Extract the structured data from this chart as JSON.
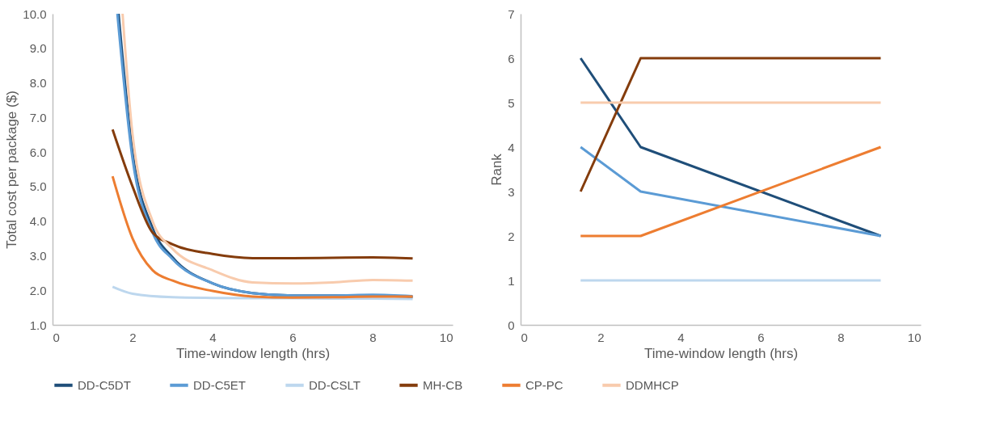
{
  "chart_data": [
    {
      "type": "line",
      "xlabel": "Time-window length (hrs)",
      "ylabel": "Total cost per package ($)",
      "xlim": [
        0,
        10
      ],
      "xticks": [
        0,
        2,
        4,
        6,
        8,
        10
      ],
      "ylim": [
        1,
        10
      ],
      "yticks": [
        {
          "value": 1,
          "label": "1.0"
        },
        {
          "value": 2,
          "label": "2.0"
        },
        {
          "value": 3,
          "label": "3.0"
        },
        {
          "value": 4,
          "label": "4.0"
        },
        {
          "value": 5,
          "label": "5.0"
        },
        {
          "value": 6,
          "label": "6.0"
        },
        {
          "value": 7,
          "label": "7.0"
        },
        {
          "value": 8,
          "label": "8.0"
        },
        {
          "value": 9,
          "label": "9.0"
        },
        {
          "value": 10,
          "label": "10.0"
        }
      ],
      "grid": false,
      "legend": "bottom",
      "series": [
        {
          "name": "DD-C5DT",
          "color": "#1f4e79",
          "x": [
            1.65,
            2,
            2.5,
            3,
            4,
            5,
            6,
            7,
            8,
            9
          ],
          "values": [
            10,
            6.0,
            3.8,
            2.95,
            2.2,
            1.92,
            1.85,
            1.85,
            1.85,
            1.8
          ]
        },
        {
          "name": "DD-C5ET",
          "color": "#5b9bd5",
          "x": [
            1.62,
            2,
            2.5,
            3,
            4,
            5,
            6,
            7,
            8,
            9
          ],
          "values": [
            10,
            5.8,
            3.67,
            2.9,
            2.2,
            1.92,
            1.85,
            1.85,
            1.87,
            1.83
          ]
        },
        {
          "name": "DD-CSLT",
          "color": "#bdd7ee",
          "x": [
            1.5,
            2,
            3,
            4,
            5,
            6,
            7,
            8,
            9
          ],
          "values": [
            2.1,
            1.9,
            1.8,
            1.78,
            1.77,
            1.77,
            1.76,
            1.76,
            1.75
          ]
        },
        {
          "name": "MH-CB",
          "color": "#843c0c",
          "x": [
            1.5,
            2,
            2.5,
            3,
            4,
            5,
            6,
            7,
            8,
            9
          ],
          "values": [
            6.65,
            5.0,
            3.67,
            3.33,
            3.05,
            2.93,
            2.93,
            2.94,
            2.95,
            2.92
          ]
        },
        {
          "name": "CP-PC",
          "color": "#ed7d31",
          "x": [
            1.5,
            2,
            2.5,
            3,
            4,
            5,
            6,
            7,
            8,
            9
          ],
          "values": [
            5.3,
            3.5,
            2.58,
            2.28,
            1.98,
            1.82,
            1.79,
            1.8,
            1.82,
            1.82
          ]
        },
        {
          "name": "DDMHCP",
          "color": "#f8cbad",
          "x": [
            1.75,
            2,
            2.5,
            3,
            4,
            5,
            6,
            7,
            8,
            9
          ],
          "values": [
            10,
            6.5,
            4.0,
            3.2,
            2.58,
            2.23,
            2.2,
            2.23,
            2.3,
            2.28
          ]
        }
      ]
    },
    {
      "type": "line",
      "xlabel": "Time-window length (hrs)",
      "ylabel": "Rank",
      "xlim": [
        0,
        10
      ],
      "xticks": [
        0,
        2,
        4,
        6,
        8,
        10
      ],
      "ylim": [
        0,
        7
      ],
      "yticks": [
        0,
        1,
        2,
        3,
        4,
        5,
        6,
        7
      ],
      "grid": false,
      "legend": "bottom",
      "x": [
        1.5,
        3,
        9
      ],
      "series": [
        {
          "name": "DD-C5DT",
          "color": "#1f4e79",
          "values": [
            6,
            4,
            2
          ]
        },
        {
          "name": "DD-C5ET",
          "color": "#5b9bd5",
          "values": [
            4,
            3,
            2
          ]
        },
        {
          "name": "DD-CSLT",
          "color": "#bdd7ee",
          "values": [
            1,
            1,
            1
          ]
        },
        {
          "name": "MH-CB",
          "color": "#843c0c",
          "values": [
            3,
            6,
            6
          ]
        },
        {
          "name": "CP-PC",
          "color": "#ed7d31",
          "values": [
            2,
            2,
            4
          ]
        },
        {
          "name": "DDMHCP",
          "color": "#f8cbad",
          "values": [
            5,
            5,
            5
          ]
        }
      ]
    }
  ]
}
